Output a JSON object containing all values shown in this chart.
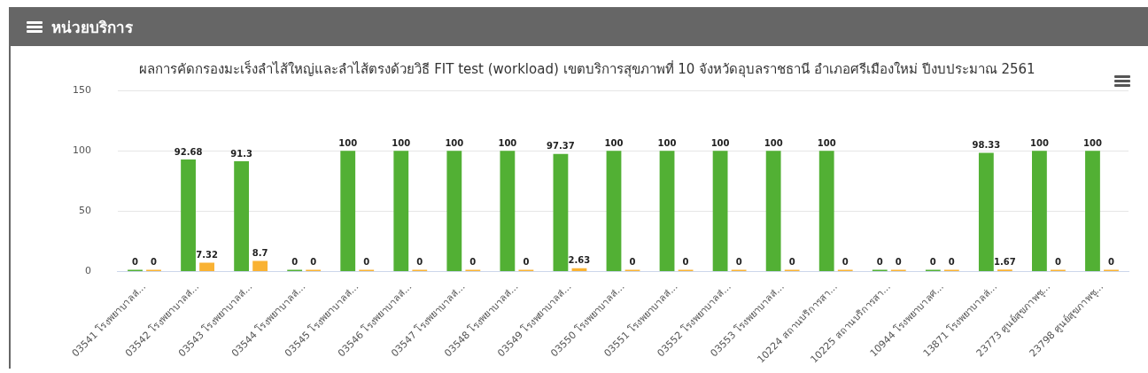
{
  "chart_data": {
    "type": "bar",
    "title": "ผลการคัดกรองมะเร็งลำไส้ใหญ่และลำไส้ตรงด้วยวิธี FIT test (workload) เขตบริการสุขภาพที่ 10 จังหวัดอุบลราชธานี อำเภอศรีเมืองใหม่ ปีงบประมาณ 2561",
    "annotations": [
      "หน่วยบริการ"
    ],
    "categories": [
      "03541 โรงพยาบาลส่...",
      "03542 โรงพยาบาลส่...",
      "03543 โรงพยาบาลส่...",
      "03544 โรงพยาบาลส่...",
      "03545 โรงพยาบาลส่...",
      "03546 โรงพยาบาลส่...",
      "03547 โรงพยาบาลส่...",
      "03548 โรงพยาบาลส่...",
      "03549 โรงพยาบาลส่...",
      "03550 โรงพยาบาลส่...",
      "03551 โรงพยาบาลส่...",
      "03552 โรงพยาบาลส่...",
      "03553 โรงพยาบาลส่...",
      "10224 สถานบริการสา...",
      "10225 สถานบริการสา...",
      "10944 โรงพยาบาลศ...",
      "13871 โรงพยาบาลส่...",
      "23773 ศูนย์สุขภาพชุ...",
      "23798 ศูนย์สุขภาพชุ..."
    ],
    "series": [
      {
        "color": "#52b034",
        "values": [
          0,
          92.68,
          91.3,
          0,
          100,
          100,
          100,
          100,
          97.37,
          100,
          100,
          100,
          100,
          100,
          0,
          0,
          98.33,
          100,
          100
        ]
      },
      {
        "color": "#f9b233",
        "values": [
          0,
          7.32,
          8.7,
          0,
          0,
          0,
          0,
          0,
          2.63,
          0,
          0,
          0,
          0,
          0,
          0,
          0,
          1.67,
          0,
          0
        ]
      }
    ],
    "ylim": [
      0,
      150
    ],
    "yticks": [
      0,
      50,
      100,
      150
    ],
    "grid": "y",
    "data_labels": true,
    "legend": false
  }
}
